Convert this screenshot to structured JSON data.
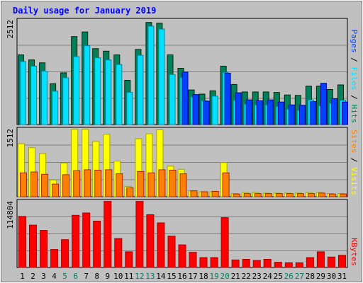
{
  "chart_data": [
    {
      "panel": "hits-files-pages",
      "type": "bar",
      "title": "Daily usage for January 2019",
      "ymax_label": "2512",
      "ylim": [
        0,
        2512
      ],
      "grid": true,
      "legend": [
        "Pages",
        "Files",
        "Hits"
      ],
      "categories": [
        "1",
        "2",
        "3",
        "4",
        "5",
        "6",
        "7",
        "8",
        "9",
        "10",
        "11",
        "12",
        "13",
        "14",
        "15",
        "16",
        "17",
        "18",
        "19",
        "20",
        "21",
        "22",
        "23",
        "24",
        "25",
        "26",
        "27",
        "28",
        "29",
        "30",
        "31"
      ],
      "series": [
        {
          "name": "Hits",
          "color": "#00805c",
          "values": [
            1670,
            1550,
            1480,
            980,
            1240,
            2110,
            2220,
            1820,
            1760,
            1670,
            1060,
            1800,
            2450,
            2430,
            1670,
            1350,
            830,
            730,
            810,
            1400,
            960,
            780,
            780,
            780,
            770,
            710,
            700,
            920,
            920,
            840,
            950
          ]
        },
        {
          "name": "Files",
          "color": "#00e0ff",
          "values": [
            1510,
            1400,
            1280,
            800,
            1120,
            1630,
            1890,
            1600,
            1550,
            1440,
            770,
            1660,
            2360,
            2290,
            1200,
            1130,
            660,
            570,
            680,
            1250,
            580,
            490,
            470,
            470,
            430,
            370,
            340,
            590,
            450,
            510,
            580
          ]
        },
        {
          "name": "Pages",
          "color": "#0040ff",
          "values": [
            0,
            0,
            0,
            0,
            0,
            0,
            0,
            0,
            0,
            0,
            0,
            0,
            0,
            0,
            0,
            1260,
            720,
            560,
            0,
            1230,
            760,
            590,
            570,
            590,
            540,
            470,
            460,
            550,
            990,
            620,
            540
          ]
        }
      ]
    },
    {
      "panel": "visits-sites",
      "type": "bar",
      "ymax_label": "1512",
      "ylim": [
        0,
        1512
      ],
      "grid": true,
      "legend": [
        "Sites",
        "Visits"
      ],
      "categories": [
        "1",
        "2",
        "3",
        "4",
        "5",
        "6",
        "7",
        "8",
        "9",
        "10",
        "11",
        "12",
        "13",
        "14",
        "15",
        "16",
        "17",
        "18",
        "19",
        "20",
        "21",
        "22",
        "23",
        "24",
        "25",
        "26",
        "27",
        "28",
        "29",
        "30",
        "31"
      ],
      "series": [
        {
          "name": "Visits",
          "color": "#ffff00",
          "values": [
            1180,
            1090,
            960,
            370,
            750,
            1500,
            1500,
            1230,
            1390,
            790,
            230,
            1290,
            1400,
            1490,
            680,
            610,
            130,
            110,
            110,
            760,
            70,
            90,
            90,
            80,
            80,
            80,
            80,
            90,
            90,
            70,
            70
          ]
        },
        {
          "name": "Sites",
          "color": "#ff8000",
          "values": [
            530,
            550,
            500,
            280,
            490,
            580,
            600,
            590,
            600,
            510,
            200,
            560,
            530,
            600,
            590,
            510,
            130,
            110,
            120,
            530,
            60,
            70,
            70,
            70,
            70,
            70,
            70,
            70,
            80,
            60,
            60
          ]
        }
      ]
    },
    {
      "panel": "kbytes",
      "type": "bar",
      "ymax_label": "114804",
      "ylim": [
        0,
        114804
      ],
      "grid": true,
      "legend": [
        "KBytes"
      ],
      "categories": [
        "1",
        "2",
        "3",
        "4",
        "5",
        "6",
        "7",
        "8",
        "9",
        "10",
        "11",
        "12",
        "13",
        "14",
        "15",
        "16",
        "17",
        "18",
        "19",
        "20",
        "21",
        "22",
        "23",
        "24",
        "25",
        "26",
        "27",
        "28",
        "29",
        "30",
        "31"
      ],
      "series": [
        {
          "name": "KBytes",
          "color": "#ff0000",
          "values": [
            88000,
            73000,
            64000,
            31000,
            48000,
            90000,
            94000,
            80000,
            114000,
            50000,
            27000,
            114000,
            91000,
            77000,
            54000,
            39000,
            26000,
            17000,
            17000,
            86000,
            13000,
            14000,
            12000,
            14000,
            9000,
            8000,
            8000,
            17000,
            27000,
            18000,
            21000
          ]
        }
      ]
    }
  ],
  "weekend_days": [
    "5",
    "6",
    "12",
    "13",
    "19",
    "20",
    "26",
    "27"
  ],
  "colors": {
    "background": "#c0c0c0",
    "plot_area": "#c0c0c0",
    "title_text": "#0000ff",
    "axis_text": "#000000",
    "weekend_text": "#00805c",
    "grid": "#808080",
    "separator": "#000000"
  }
}
